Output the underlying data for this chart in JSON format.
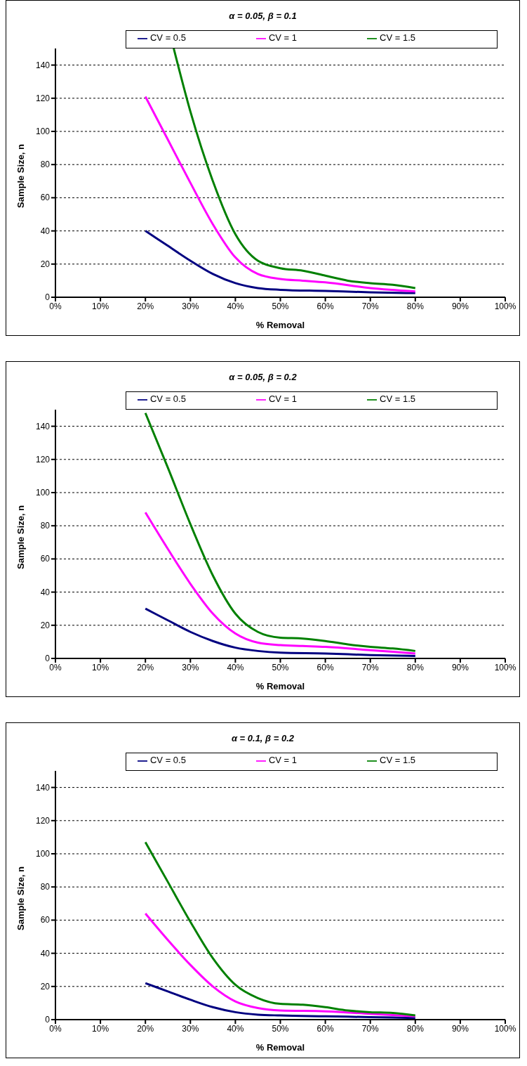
{
  "chart_data": [
    {
      "type": "line",
      "title": "α = 0.05, β = 0.1",
      "xlabel": "% Removal",
      "ylabel": "Sample Size, n",
      "xlim": [
        0,
        100
      ],
      "xticks": [
        {
          "value": 0,
          "label": "0%"
        },
        {
          "value": 10,
          "label": "10%"
        },
        {
          "value": 20,
          "label": "20%"
        },
        {
          "value": 30,
          "label": "30%"
        },
        {
          "value": 40,
          "label": "40%"
        },
        {
          "value": 50,
          "label": "50%"
        },
        {
          "value": 60,
          "label": "60%"
        },
        {
          "value": 70,
          "label": "70%"
        },
        {
          "value": 80,
          "label": "80%"
        },
        {
          "value": 90,
          "label": "90%"
        },
        {
          "value": 100,
          "label": "100%"
        }
      ],
      "ylim": [
        0,
        150
      ],
      "yticks": [
        0,
        20,
        40,
        60,
        80,
        100,
        120,
        140
      ],
      "grid": "y",
      "legend": "top",
      "marker": "none",
      "series": [
        {
          "name": "CV = 0.5",
          "color": "#000080",
          "x": [
            20,
            25,
            30,
            35,
            40,
            45,
            50,
            60,
            70,
            80
          ],
          "values": [
            40,
            31,
            22,
            14,
            8.5,
            5.5,
            4.5,
            3.8,
            3,
            2.5
          ]
        },
        {
          "name": "CV = 1",
          "color": "#ff00ff",
          "x": [
            20,
            25,
            30,
            35,
            40,
            45,
            50,
            55,
            60,
            70,
            80
          ],
          "values": [
            121,
            95,
            69,
            44,
            24,
            14,
            11,
            10,
            9,
            5.5,
            3.5
          ]
        },
        {
          "name": "CV = 1.5",
          "color": "#008000",
          "x": [
            26.3,
            30,
            35,
            40,
            45,
            50,
            55,
            60,
            65,
            70,
            75,
            80
          ],
          "values": [
            150,
            112,
            70,
            38,
            22,
            17.5,
            16,
            13,
            10,
            8.5,
            7.5,
            5.5
          ]
        }
      ]
    },
    {
      "type": "line",
      "title": "α = 0.05, β = 0.2",
      "xlabel": "% Removal",
      "ylabel": "Sample Size, n",
      "xlim": [
        0,
        100
      ],
      "xticks": [
        {
          "value": 0,
          "label": "0%"
        },
        {
          "value": 10,
          "label": "10%"
        },
        {
          "value": 20,
          "label": "20%"
        },
        {
          "value": 30,
          "label": "30%"
        },
        {
          "value": 40,
          "label": "40%"
        },
        {
          "value": 50,
          "label": "50%"
        },
        {
          "value": 60,
          "label": "60%"
        },
        {
          "value": 70,
          "label": "70%"
        },
        {
          "value": 80,
          "label": "80%"
        },
        {
          "value": 90,
          "label": "90%"
        },
        {
          "value": 100,
          "label": "100%"
        }
      ],
      "ylim": [
        0,
        150
      ],
      "yticks": [
        0,
        20,
        40,
        60,
        80,
        100,
        120,
        140
      ],
      "grid": "y",
      "legend": "top",
      "marker": "none",
      "series": [
        {
          "name": "CV = 0.5",
          "color": "#000080",
          "x": [
            20,
            25,
            30,
            35,
            40,
            45,
            50,
            60,
            70,
            80
          ],
          "values": [
            30,
            23,
            16,
            10.5,
            6.5,
            4.5,
            3.5,
            3,
            2,
            1.5
          ]
        },
        {
          "name": "CV = 1",
          "color": "#ff00ff",
          "x": [
            20,
            25,
            30,
            35,
            40,
            45,
            50,
            55,
            60,
            70,
            80
          ],
          "values": [
            88,
            66,
            45,
            27,
            15,
            9.5,
            8,
            7.5,
            7,
            5,
            3
          ]
        },
        {
          "name": "CV = 1.5",
          "color": "#008000",
          "x": [
            20,
            25,
            30,
            35,
            40,
            45,
            50,
            55,
            60,
            65,
            70,
            75,
            80
          ],
          "values": [
            148,
            115,
            81,
            50,
            27,
            16,
            12.5,
            12,
            10.5,
            8.5,
            7,
            6,
            4.5
          ]
        }
      ]
    },
    {
      "type": "line",
      "title": "α = 0.1, β = 0.2",
      "xlabel": "% Removal",
      "ylabel": "Sample Size, n",
      "xlim": [
        0,
        100
      ],
      "xticks": [
        {
          "value": 0,
          "label": "0%"
        },
        {
          "value": 10,
          "label": "10%"
        },
        {
          "value": 20,
          "label": "20%"
        },
        {
          "value": 30,
          "label": "30%"
        },
        {
          "value": 40,
          "label": "40%"
        },
        {
          "value": 50,
          "label": "50%"
        },
        {
          "value": 60,
          "label": "60%"
        },
        {
          "value": 70,
          "label": "70%"
        },
        {
          "value": 80,
          "label": "80%"
        },
        {
          "value": 90,
          "label": "90%"
        },
        {
          "value": 100,
          "label": "100%"
        }
      ],
      "ylim": [
        0,
        150
      ],
      "yticks": [
        0,
        20,
        40,
        60,
        80,
        100,
        120,
        140
      ],
      "grid": "y",
      "legend": "top",
      "marker": "none",
      "series": [
        {
          "name": "CV = 0.5",
          "color": "#000080",
          "x": [
            20,
            25,
            30,
            35,
            40,
            45,
            50,
            60,
            70,
            80
          ],
          "values": [
            22,
            17,
            12,
            7.5,
            4.5,
            3,
            2.5,
            2,
            1.5,
            1
          ]
        },
        {
          "name": "CV = 1",
          "color": "#ff00ff",
          "x": [
            20,
            25,
            30,
            35,
            40,
            45,
            50,
            60,
            70,
            80
          ],
          "values": [
            64,
            48,
            33,
            20,
            11,
            7,
            5.5,
            5,
            3.5,
            2
          ]
        },
        {
          "name": "CV = 1.5",
          "color": "#008000",
          "x": [
            20,
            25,
            30,
            35,
            40,
            45,
            50,
            55,
            60,
            65,
            70,
            75,
            80
          ],
          "values": [
            107,
            83,
            59,
            37,
            21,
            13,
            9.5,
            9,
            7.5,
            5.5,
            4.5,
            4,
            2.5
          ]
        }
      ]
    }
  ]
}
